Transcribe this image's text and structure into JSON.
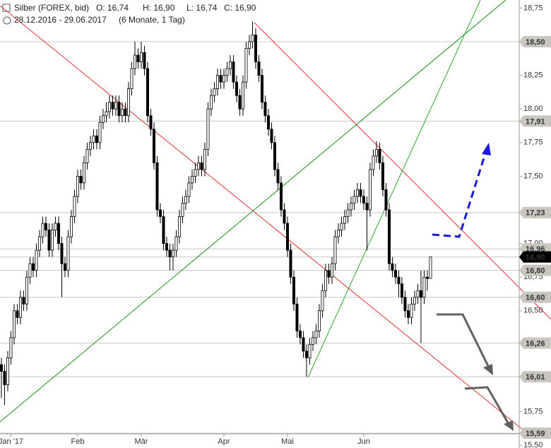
{
  "chart_data": {
    "type": "candlestick",
    "title": "Silber (FOREX, bid)",
    "ohlc_text": [
      "O: 16,74",
      "H: 16,90",
      "L: 16,74",
      "C: 16,90"
    ],
    "date_range": "28.12.2016 - 29.06.2017",
    "period": "(6 Monate, 1 Tag)",
    "xlim": [
      -0.44,
      162.9
    ],
    "xticks": [
      {
        "value": 3,
        "label": "Jan '17"
      },
      {
        "value": 24,
        "label": "Feb"
      },
      {
        "value": 44,
        "label": "Mär"
      },
      {
        "value": 70,
        "label": "Apr"
      },
      {
        "value": 90,
        "label": "Mai"
      },
      {
        "value": 114,
        "label": "Jun"
      }
    ],
    "ylim": [
      15.48,
      18.81
    ],
    "yticks": [
      {
        "value": 18.75,
        "label": "18,75"
      },
      {
        "value": 18.25,
        "label": "18,25"
      },
      {
        "value": 18,
        "label": "18,00"
      },
      {
        "value": 17.75,
        "label": "17,75"
      },
      {
        "value": 17.5,
        "label": "17,50"
      },
      {
        "value": 17,
        "label": "17,00"
      },
      {
        "value": 16.75,
        "label": "16,75"
      },
      {
        "value": 16.5,
        "label": "16,50"
      },
      {
        "value": 15.75,
        "label": "15,75"
      },
      {
        "value": 15.5,
        "label": "15,50"
      }
    ],
    "levels": [
      {
        "value": 18.5,
        "label": "18,50"
      },
      {
        "value": 17.91,
        "label": "17,91"
      },
      {
        "value": 17.23,
        "label": "17,23"
      },
      {
        "value": 16.96,
        "label": "16,96"
      },
      {
        "value": 16.8,
        "label": "16,80"
      },
      {
        "value": 16.6,
        "label": "16,60"
      },
      {
        "value": 16.26,
        "label": "16,26"
      },
      {
        "value": 16.01,
        "label": "16,01"
      },
      {
        "value": 15.59,
        "label": "15,59"
      }
    ],
    "last": {
      "value": 16.9,
      "label": "16,90"
    },
    "up_color": "#ffffff",
    "down_color": "#000000",
    "open": [
      16.1,
      16.05,
      15.95,
      16.15,
      16.3,
      16.5,
      16.45,
      16.6,
      16.55,
      16.75,
      16.85,
      16.8,
      16.95,
      17.05,
      17.15,
      17.1,
      16.95,
      17.1,
      17.15,
      17.0,
      16.85,
      16.8,
      17.05,
      17.2,
      17.35,
      17.5,
      17.45,
      17.6,
      17.7,
      17.75,
      17.8,
      17.75,
      17.9,
      17.95,
      17.98,
      18.05,
      18.0,
      18.05,
      17.95,
      18.0,
      17.95,
      18.15,
      18.3,
      18.4,
      18.35,
      18.42,
      18.3,
      17.95,
      17.85,
      17.6,
      17.25,
      17.2,
      17.0,
      16.95,
      16.9,
      16.95,
      17.05,
      17.2,
      17.3,
      17.35,
      17.45,
      17.5,
      17.55,
      17.6,
      17.55,
      17.7,
      18.0,
      18.1,
      18.15,
      18.25,
      18.2,
      18.25,
      18.3,
      18.35,
      18.2,
      18.1,
      18.0,
      18.2,
      18.45,
      18.5,
      18.55,
      18.35,
      18.25,
      18.05,
      17.95,
      17.85,
      17.75,
      17.55,
      17.45,
      17.25,
      17.15,
      16.95,
      16.75,
      16.55,
      16.35,
      16.3,
      16.2,
      16.15,
      16.25,
      16.3,
      16.35,
      16.5,
      16.65,
      16.8,
      16.75,
      16.85,
      17.05,
      17.1,
      17.15,
      17.2,
      17.25,
      17.3,
      17.35,
      17.4,
      17.35,
      17.3,
      17.25,
      17.55,
      17.65,
      17.7,
      17.6,
      17.4,
      17.25,
      16.85,
      16.8,
      16.75,
      16.7,
      16.6,
      16.5,
      16.45,
      16.55,
      16.6,
      16.65,
      16.6,
      16.75,
      16.74
    ],
    "high": [
      16.15,
      16.1,
      16.2,
      16.35,
      16.55,
      16.55,
      16.65,
      16.65,
      16.8,
      16.9,
      16.9,
      17.0,
      17.1,
      17.2,
      17.2,
      17.15,
      17.15,
      17.2,
      17.2,
      17.05,
      16.9,
      17.1,
      17.25,
      17.4,
      17.55,
      17.55,
      17.65,
      17.75,
      17.8,
      17.85,
      17.85,
      17.95,
      18.0,
      18.05,
      18.1,
      18.1,
      18.1,
      18.1,
      18.05,
      18.05,
      18.2,
      18.35,
      18.5,
      18.45,
      18.5,
      18.47,
      18.35,
      18.0,
      17.9,
      17.65,
      17.3,
      17.25,
      17.05,
      17.0,
      17.0,
      17.1,
      17.25,
      17.35,
      17.4,
      17.5,
      17.55,
      17.6,
      17.65,
      17.65,
      17.75,
      18.05,
      18.15,
      18.2,
      18.3,
      18.3,
      18.3,
      18.35,
      18.4,
      18.4,
      18.25,
      18.15,
      18.25,
      18.5,
      18.55,
      18.65,
      18.6,
      18.4,
      18.3,
      18.1,
      18.0,
      17.9,
      17.8,
      17.6,
      17.5,
      17.3,
      17.2,
      17.0,
      16.8,
      16.6,
      16.4,
      16.35,
      16.25,
      16.3,
      16.35,
      16.4,
      16.55,
      16.7,
      16.85,
      16.85,
      16.9,
      17.1,
      17.15,
      17.2,
      17.25,
      17.3,
      17.35,
      17.4,
      17.45,
      17.45,
      17.4,
      17.35,
      17.6,
      17.7,
      17.76,
      17.75,
      17.65,
      17.45,
      17.3,
      16.9,
      16.85,
      16.8,
      16.75,
      16.65,
      16.55,
      16.6,
      16.65,
      16.7,
      16.8,
      16.8,
      16.8,
      16.9
    ],
    "low": [
      15.85,
      15.8,
      15.9,
      16.1,
      16.25,
      16.4,
      16.4,
      16.5,
      16.5,
      16.7,
      16.75,
      16.75,
      16.9,
      17.0,
      17.05,
      16.9,
      16.9,
      17.05,
      16.95,
      16.6,
      16.75,
      16.75,
      17.0,
      17.15,
      17.3,
      17.4,
      17.4,
      17.55,
      17.65,
      17.7,
      17.7,
      17.7,
      17.85,
      17.9,
      17.93,
      17.95,
      17.95,
      17.9,
      17.9,
      17.9,
      17.9,
      18.1,
      18.25,
      18.3,
      18.3,
      18.25,
      17.9,
      17.8,
      17.55,
      17.2,
      17.15,
      16.95,
      16.9,
      16.8,
      16.8,
      16.9,
      17.0,
      17.15,
      17.25,
      17.3,
      17.4,
      17.45,
      17.5,
      17.5,
      17.5,
      17.65,
      17.95,
      18.05,
      18.1,
      18.15,
      18.15,
      18.2,
      18.25,
      18.15,
      18.05,
      17.95,
      17.95,
      18.15,
      18.4,
      18.45,
      18.3,
      18.2,
      18.0,
      17.9,
      17.8,
      17.7,
      17.5,
      17.4,
      17.2,
      17.1,
      16.9,
      16.7,
      16.5,
      16.3,
      16.25,
      16.15,
      16.01,
      16.1,
      16.2,
      16.25,
      16.3,
      16.45,
      16.6,
      16.7,
      16.7,
      16.8,
      17.0,
      17.05,
      17.1,
      17.15,
      17.2,
      17.25,
      17.3,
      17.3,
      17.25,
      16.95,
      17.2,
      17.5,
      17.6,
      17.55,
      17.35,
      17.2,
      16.8,
      16.75,
      16.7,
      16.6,
      16.55,
      16.45,
      16.4,
      16.4,
      16.5,
      16.55,
      16.26,
      16.55,
      16.65,
      16.74
    ],
    "close": [
      16.05,
      15.95,
      16.15,
      16.3,
      16.5,
      16.45,
      16.6,
      16.55,
      16.75,
      16.85,
      16.8,
      16.95,
      17.05,
      17.15,
      17.1,
      16.95,
      17.1,
      17.15,
      17.0,
      16.85,
      16.8,
      17.05,
      17.2,
      17.35,
      17.5,
      17.45,
      17.6,
      17.7,
      17.75,
      17.8,
      17.75,
      17.9,
      17.95,
      17.98,
      18.05,
      18.0,
      18.05,
      17.95,
      18.0,
      17.95,
      18.15,
      18.3,
      18.4,
      18.35,
      18.42,
      18.3,
      17.95,
      17.85,
      17.6,
      17.25,
      17.2,
      17.0,
      16.95,
      16.9,
      16.95,
      17.05,
      17.2,
      17.3,
      17.35,
      17.45,
      17.5,
      17.55,
      17.6,
      17.55,
      17.7,
      18.0,
      18.1,
      18.15,
      18.25,
      18.2,
      18.25,
      18.3,
      18.35,
      18.2,
      18.1,
      18.0,
      18.2,
      18.45,
      18.5,
      18.55,
      18.35,
      18.25,
      18.05,
      17.95,
      17.85,
      17.75,
      17.55,
      17.45,
      17.25,
      17.15,
      16.95,
      16.75,
      16.55,
      16.35,
      16.3,
      16.2,
      16.15,
      16.25,
      16.3,
      16.35,
      16.5,
      16.65,
      16.8,
      16.75,
      16.85,
      17.05,
      17.1,
      17.15,
      17.2,
      17.25,
      17.3,
      17.35,
      17.4,
      17.35,
      17.3,
      17.25,
      17.55,
      17.65,
      17.7,
      17.6,
      17.4,
      17.25,
      16.85,
      16.8,
      16.75,
      16.7,
      16.6,
      16.5,
      16.45,
      16.55,
      16.6,
      16.65,
      16.6,
      16.75,
      16.74,
      16.9
    ]
  }
}
